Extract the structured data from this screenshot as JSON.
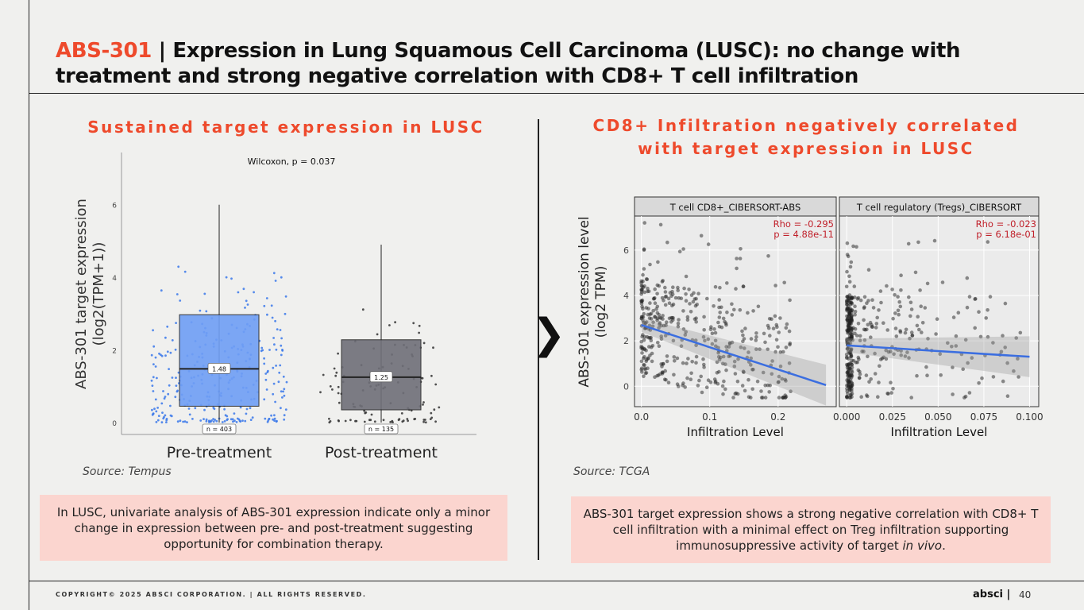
{
  "slide": {
    "title_accent": "ABS-301",
    "title_sep": "|",
    "title_rest": "Expression in Lung Squamous Cell Carcinoma (LUSC): no change with treatment and strong negative correlation with CD8+ T cell infiltration"
  },
  "left": {
    "heading": "Sustained target expression in LUSC",
    "source": "Source: Tempus",
    "note": "In LUSC, univariate analysis of ABS-301 expression indicate only a minor change in expression between pre- and post-treatment suggesting opportunity for combination therapy."
  },
  "right": {
    "heading_line1": "CD8+ Infiltration negatively correlated",
    "heading_line2": "with target expression in LUSC",
    "source": "Source: TCGA",
    "note_main": "ABS-301 target expression shows a strong negative correlation with CD8+ T cell infiltration with a minimal effect on Treg infiltration supporting immunosuppressive activity of target ",
    "note_italic": "in vivo",
    "note_end": "."
  },
  "footer": {
    "copyright": "COPYRIGHT© 2025 ABSCI CORPORATION.  |  ALL RIGHTS RESERVED.",
    "brand": "absci |",
    "page": "40"
  },
  "chevron_glyph": "❯",
  "colors": {
    "accent": "#ee4a2c",
    "pre_box": "#6f9ef5",
    "post_box": "#6f6f78",
    "regression": "#3b6ee0",
    "note_bg": "#fbd5cf"
  },
  "chart_data": [
    {
      "type": "box",
      "title": "Wilcoxon, p = 0.037",
      "ylabel_line1": "ABS-301 target expression",
      "ylabel_line2": "(log2(TPM+1))",
      "ylim": [
        0,
        7
      ],
      "yticks": [
        "0",
        "2",
        "4",
        "6"
      ],
      "categories": [
        "Pre-treatment",
        "Post-treatment"
      ],
      "boxes": [
        {
          "name": "Pre-treatment",
          "q1": 0.45,
          "median": 1.48,
          "q3": 2.97,
          "whisker_low": 0.0,
          "whisker_high": 6.0,
          "median_label": "1.48",
          "n_label": "n = 403",
          "color": "#6f9ef5",
          "dot_color": "#3a78ea"
        },
        {
          "name": "Post-treatment",
          "q1": 0.35,
          "median": 1.25,
          "q3": 2.28,
          "whisker_low": 0.0,
          "whisker_high": 4.9,
          "median_label": "1.25",
          "n_label": "n = 135",
          "color": "#6f6f78",
          "dot_color": "#333333"
        }
      ]
    },
    {
      "type": "scatter",
      "ylabel_line1": "ABS-301 expression level",
      "ylabel_line2": "(log2 TPM)",
      "yticks": [
        "0",
        "2",
        "4",
        "6"
      ],
      "ylim": [
        -0.9,
        7.5
      ],
      "panels": [
        {
          "title": "T cell CD8+_CIBERSORT-ABS",
          "rho": "Rho = -0.295",
          "p": "p = 4.88e-11",
          "xlabel": "Infiltration Level",
          "xlim": [
            -0.01,
            0.285
          ],
          "xticks": [
            0.0,
            0.1,
            0.2
          ],
          "xtick_labels": [
            "0.0",
            "0.1",
            "0.2"
          ],
          "fit": {
            "x0": 0.0,
            "y0": 2.7,
            "x1": 0.27,
            "y1": 0.05
          }
        },
        {
          "title": "T cell regulatory (Tregs)_CIBERSORT",
          "rho": "Rho = -0.023",
          "p": "p = 6.18e-01",
          "xlabel": "Infiltration Level",
          "xlim": [
            -0.004,
            0.105
          ],
          "xticks": [
            0.0,
            0.025,
            0.05,
            0.075,
            0.1
          ],
          "xtick_labels": [
            "0.000",
            "0.025",
            "0.050",
            "0.075",
            "0.100"
          ],
          "fit": {
            "x0": 0.0,
            "y0": 1.8,
            "x1": 0.1,
            "y1": 1.3
          }
        }
      ]
    }
  ]
}
